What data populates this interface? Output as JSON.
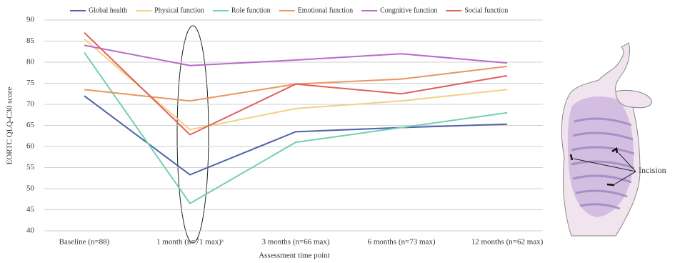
{
  "chart_data": {
    "type": "line",
    "y_label": "EORTC QLQ-C30 score",
    "x_label": "Assessment time point",
    "categories": [
      "Baseline (n=88)",
      "1 month (n=71 max)ᵃ",
      "3 months (n=66 max)",
      "6 months (n=73 max)",
      "12 months (n=62 max)"
    ],
    "series": [
      {
        "name": "Global health",
        "color": "#4f63aa",
        "values": [
          72,
          53.3,
          63.5,
          64.5,
          65.3
        ]
      },
      {
        "name": "Physical function",
        "color": "#f3d084",
        "values": [
          85.5,
          64,
          69,
          70.8,
          73.5
        ]
      },
      {
        "name": "Role function",
        "color": "#72d0b2",
        "values": [
          82.3,
          46.5,
          61,
          64.5,
          68
        ]
      },
      {
        "name": "Emotional function",
        "color": "#e8975f",
        "values": [
          73.5,
          70.8,
          74.8,
          76,
          79
        ]
      },
      {
        "name": "Congnitive function",
        "color": "#b76cc5",
        "values": [
          84,
          79.2,
          80.5,
          82,
          79.8
        ]
      },
      {
        "name": "Social function",
        "color": "#df615c",
        "values": [
          87,
          62.8,
          74.8,
          72.5,
          76.8
        ]
      }
    ],
    "ylim": [
      40,
      90
    ],
    "yticks": [
      40,
      45,
      50,
      55,
      60,
      65,
      70,
      75,
      80,
      85,
      90
    ],
    "grid": true,
    "annotation": "Incision"
  }
}
